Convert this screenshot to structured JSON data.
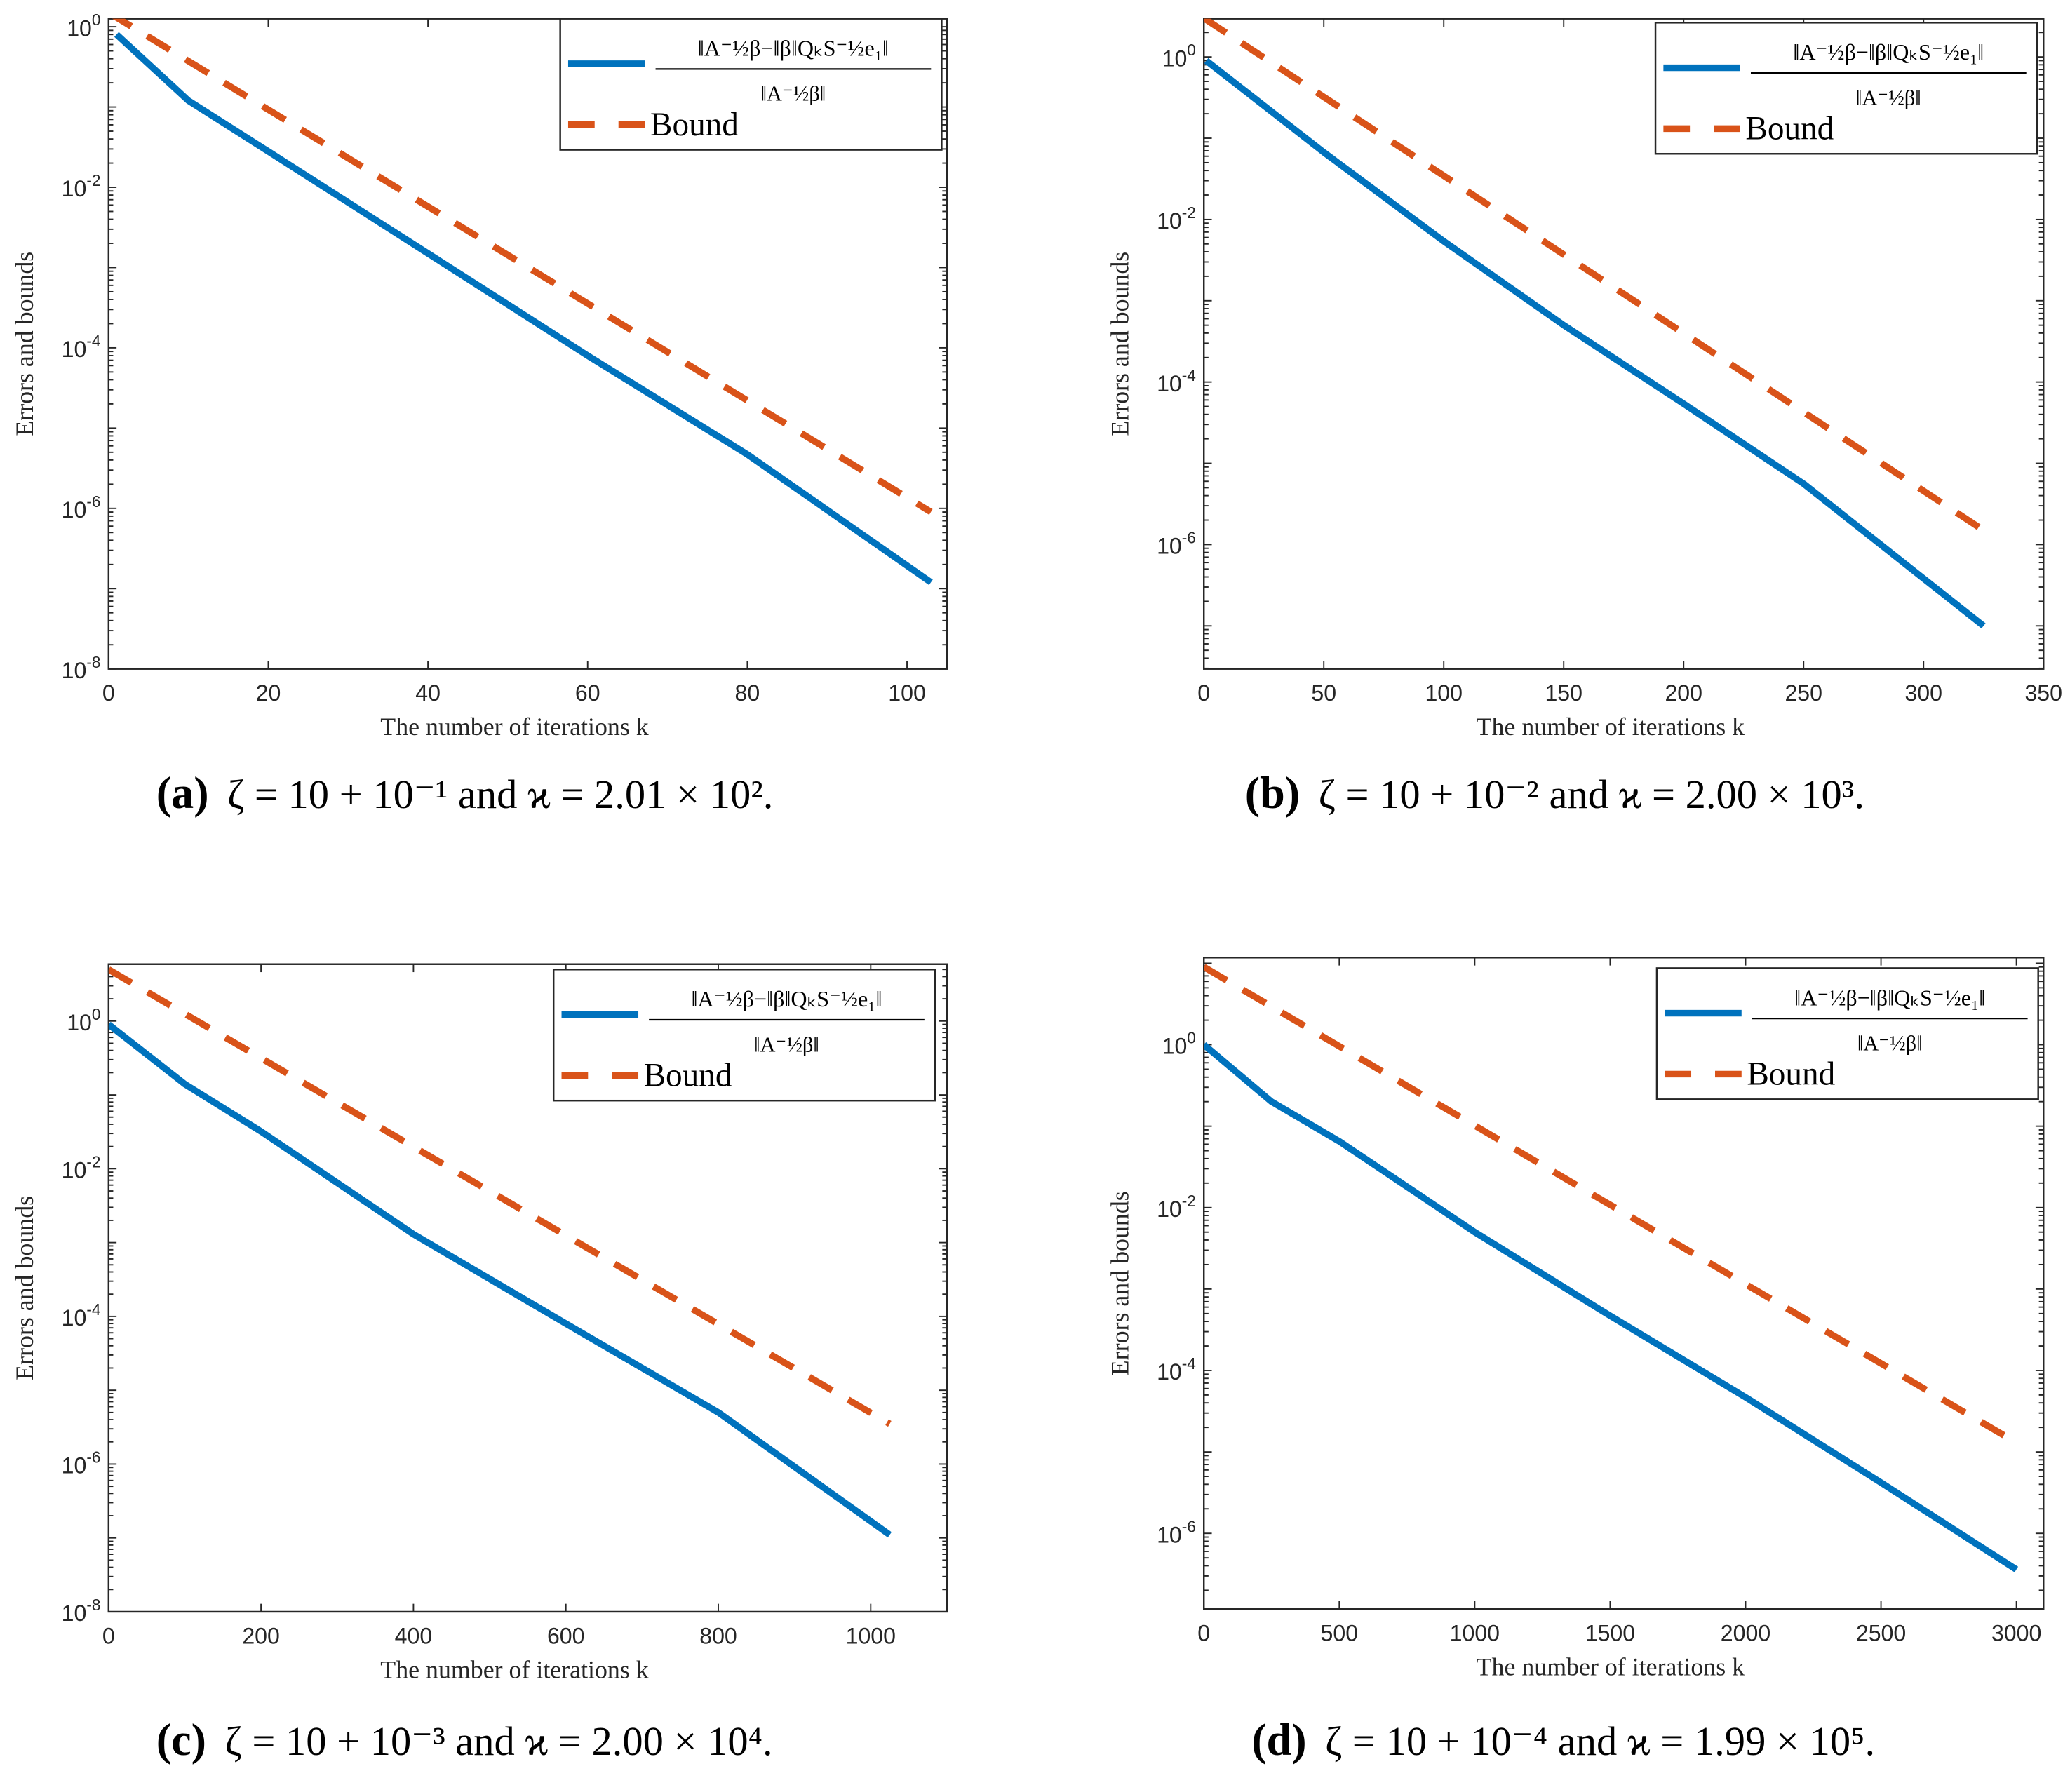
{
  "colors": {
    "error": "#0072BD",
    "bound": "#D95319",
    "axis": "#262626"
  },
  "chart_data": [
    {
      "type": "line",
      "panel": "(a)",
      "caption": "ζ = 10 + 10⁻¹ and ϰ = 2.01 × 10².",
      "xlabel": "The number of iterations k",
      "ylabel": "Errors and bounds",
      "xlim": [
        0,
        105
      ],
      "xticks": [
        0,
        20,
        40,
        60,
        80,
        100
      ],
      "ylim_log10": [
        -8,
        0.1
      ],
      "yticks_exp": [
        0,
        -2,
        -4,
        -6,
        -8
      ],
      "yscale": "log",
      "legend": {
        "position": "top-right",
        "error_num": "‖A⁻½β−‖β‖QₖS⁻½e₁‖",
        "error_den": "‖A⁻½β‖",
        "bound": "Bound"
      },
      "series": [
        {
          "name": "error",
          "style": "solid",
          "x": [
            1,
            10,
            20,
            40,
            60,
            80,
            103
          ],
          "y": [
            0.8,
            0.12,
            0.028,
            0.0015,
            8e-05,
            4.7e-06,
            1.2e-07
          ]
        },
        {
          "name": "Bound",
          "style": "dashed",
          "x": [
            0,
            103
          ],
          "y": [
            1.5,
            9e-07
          ]
        }
      ]
    },
    {
      "type": "line",
      "panel": "(b)",
      "caption": "ζ = 10 + 10⁻² and ϰ = 2.00 × 10³.",
      "xlabel": "The number of iterations k",
      "ylabel": "Errors and bounds",
      "xlim": [
        0,
        350
      ],
      "xticks": [
        0,
        50,
        100,
        150,
        200,
        250,
        300,
        350
      ],
      "ylim_log10": [
        -7.53,
        0.47
      ],
      "yticks_exp": [
        0,
        -2,
        -4,
        -6
      ],
      "yscale": "log",
      "legend": {
        "position": "top-right",
        "error_num": "‖A⁻½β−‖β‖QₖS⁻½e₁‖",
        "error_den": "‖A⁻½β‖",
        "bound": "Bound"
      },
      "series": [
        {
          "name": "error",
          "style": "solid",
          "x": [
            1,
            50,
            100,
            150,
            200,
            250,
            325
          ],
          "y": [
            0.9,
            0.067,
            0.0054,
            0.0005,
            5.4e-05,
            5.6e-06,
            1e-07
          ]
        },
        {
          "name": "Bound",
          "style": "dashed",
          "x": [
            0,
            325
          ],
          "y": [
            3,
            1.5e-06
          ]
        }
      ]
    },
    {
      "type": "line",
      "panel": "(c)",
      "caption": "ζ = 10 + 10⁻³ and ϰ = 2.00 × 10⁴.",
      "xlabel": "The number of iterations k",
      "ylabel": "Errors and bounds",
      "xlim": [
        0,
        1100
      ],
      "xticks": [
        0,
        200,
        400,
        600,
        800,
        1000
      ],
      "ylim_log10": [
        -8,
        0.77
      ],
      "yticks_exp": [
        0,
        -2,
        -4,
        -6,
        -8
      ],
      "yscale": "log",
      "legend": {
        "position": "top-right",
        "error_num": "‖A⁻½β−‖β‖QₖS⁻½e₁‖",
        "error_den": "‖A⁻½β‖",
        "bound": "Bound"
      },
      "series": [
        {
          "name": "error",
          "style": "solid",
          "x": [
            0,
            100,
            200,
            400,
            600,
            800,
            1025
          ],
          "y": [
            0.9,
            0.14,
            0.032,
            0.0013,
            8e-05,
            5e-06,
            1.1e-07
          ]
        },
        {
          "name": "Bound",
          "style": "dashed",
          "x": [
            0,
            1025
          ],
          "y": [
            5,
            3.5e-06
          ]
        }
      ]
    },
    {
      "type": "line",
      "panel": "(d)",
      "caption": "ζ = 10 + 10⁻⁴ and ϰ = 1.99 × 10⁵.",
      "xlabel": "The number of iterations k",
      "ylabel": "Errors and bounds",
      "xlim": [
        0,
        3100
      ],
      "xticks": [
        0,
        500,
        1000,
        1500,
        2000,
        2500,
        3000
      ],
      "ylim_log10": [
        -6.93,
        1.07
      ],
      "yticks_exp": [
        0,
        -2,
        -4,
        -6
      ],
      "yscale": "log",
      "legend": {
        "position": "top-right",
        "error_num": "‖A⁻½β−‖β‖QₖS⁻½e₁‖",
        "error_den": "‖A⁻½β‖",
        "bound": "Bound"
      },
      "series": [
        {
          "name": "error",
          "style": "solid",
          "x": [
            0,
            250,
            500,
            1000,
            1500,
            2000,
            2500,
            3000
          ],
          "y": [
            1,
            0.2,
            0.065,
            0.005,
            0.00047,
            4.7e-05,
            4.2e-06,
            3.6e-07
          ]
        },
        {
          "name": "Bound",
          "style": "dashed",
          "x": [
            0,
            3000
          ],
          "y": [
            9,
            1.3e-05
          ]
        }
      ]
    }
  ]
}
